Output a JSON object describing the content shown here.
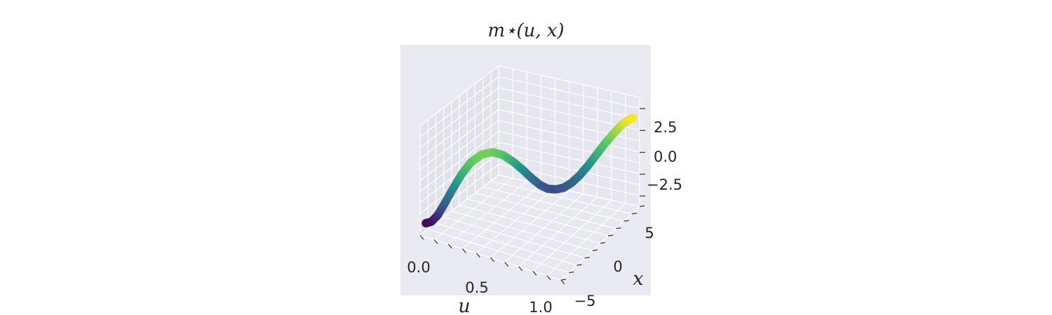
{
  "chart_data": {
    "type": "scatter",
    "projection": "3d",
    "title": "m⋆(u, x)",
    "xlabel": "u",
    "ylabel": "x",
    "zlabel": "",
    "u_ticks": [
      "0.0",
      "0.5",
      "1.0"
    ],
    "x_ticks": [
      "−5",
      "0",
      "5"
    ],
    "z_ticks": [
      "2.5",
      "0.0",
      "−2.5"
    ],
    "ulim": [
      0,
      1
    ],
    "xlim": [
      -7,
      7
    ],
    "zlim": [
      -5,
      5
    ],
    "grid": true,
    "colormap": "viridis",
    "colormap_stops": [
      "#440154",
      "#3b528b",
      "#21918c",
      "#5ec962",
      "#fde725"
    ],
    "series": [
      {
        "u": [
          0.0,
          0.04,
          0.08,
          0.12,
          0.16,
          0.2,
          0.24,
          0.28,
          0.32,
          0.36,
          0.4,
          0.44,
          0.48,
          0.52,
          0.56,
          0.6,
          0.64,
          0.68,
          0.72,
          0.76,
          0.8,
          0.84,
          0.88,
          0.92,
          0.96,
          1.0
        ],
        "x": [
          -6.0,
          -6.0,
          -5.9,
          -5.7,
          -5.3,
          -4.7,
          -4.0,
          -3.1,
          -2.2,
          -1.3,
          -0.5,
          0.2,
          0.8,
          1.3,
          1.7,
          2.1,
          2.5,
          2.9,
          3.3,
          3.8,
          4.3,
          4.8,
          5.3,
          5.7,
          6.0,
          6.0
        ],
        "z": [
          -4.3,
          -4.0,
          -3.3,
          -2.2,
          -0.9,
          0.4,
          1.4,
          1.9,
          1.9,
          1.4,
          0.6,
          -0.3,
          -1.2,
          -1.9,
          -2.3,
          -2.4,
          -2.3,
          -1.9,
          -1.3,
          -0.5,
          0.4,
          1.3,
          2.1,
          2.8,
          3.3,
          3.6
        ]
      }
    ]
  }
}
